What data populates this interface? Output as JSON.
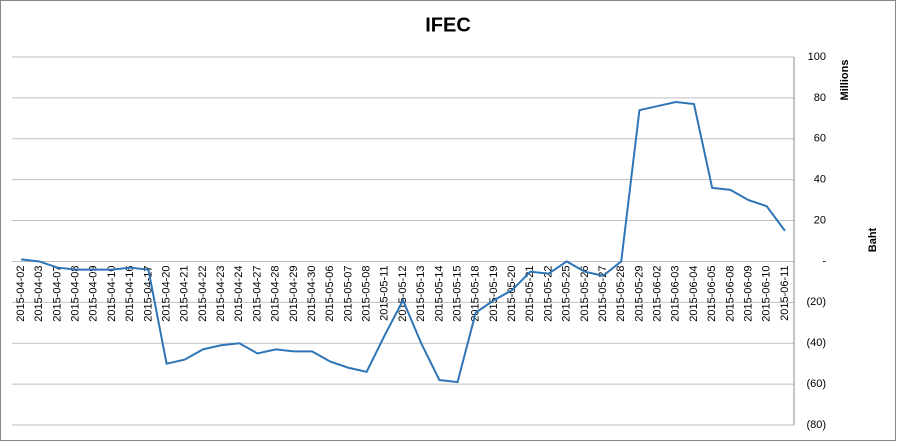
{
  "chart_data": {
    "type": "line",
    "title": "IFEC",
    "y_unit_label": "Millions",
    "y_axis_label": "Baht",
    "categories": [
      "2015-04-02",
      "2015-04-03",
      "2015-04-07",
      "2015-04-08",
      "2015-04-09",
      "2015-04-10",
      "2015-04-16",
      "2015-04-17",
      "2015-04-20",
      "2015-04-21",
      "2015-04-22",
      "2015-04-23",
      "2015-04-24",
      "2015-04-27",
      "2015-04-28",
      "2015-04-29",
      "2015-04-30",
      "2015-05-06",
      "2015-05-07",
      "2015-05-08",
      "2015-05-11",
      "2015-05-12",
      "2015-05-13",
      "2015-05-14",
      "2015-05-15",
      "2015-05-18",
      "2015-05-19",
      "2015-05-20",
      "2015-05-21",
      "2015-05-22",
      "2015-05-25",
      "2015-05-26",
      "2015-05-27",
      "2015-05-28",
      "2015-05-29",
      "2015-06-02",
      "2015-06-03",
      "2015-06-04",
      "2015-06-05",
      "2015-06-08",
      "2015-06-09",
      "2015-06-10",
      "2015-06-11"
    ],
    "values": [
      1,
      0,
      -3,
      -4,
      -4,
      -4,
      -3,
      -4,
      -50,
      -48,
      -43,
      -41,
      -40,
      -45,
      -43,
      -44,
      -44,
      -49,
      -52,
      -54,
      -36,
      -19,
      -40,
      -58,
      -59,
      -25,
      -19,
      -14,
      -5,
      -6,
      0,
      -5,
      -7,
      0,
      74,
      76,
      78,
      77,
      36,
      35,
      30,
      27,
      15
    ],
    "color": "#2e75b6",
    "ylim": [
      -80,
      100
    ],
    "yticks": [
      100,
      80,
      60,
      40,
      20,
      {
        "value": 0,
        "label": "-"
      },
      {
        "value": -20,
        "label": "(20)"
      },
      {
        "value": -40,
        "label": "(40)"
      },
      {
        "value": -60,
        "label": "(60)"
      },
      {
        "value": -80,
        "label": "(80)"
      }
    ],
    "grid": true
  }
}
